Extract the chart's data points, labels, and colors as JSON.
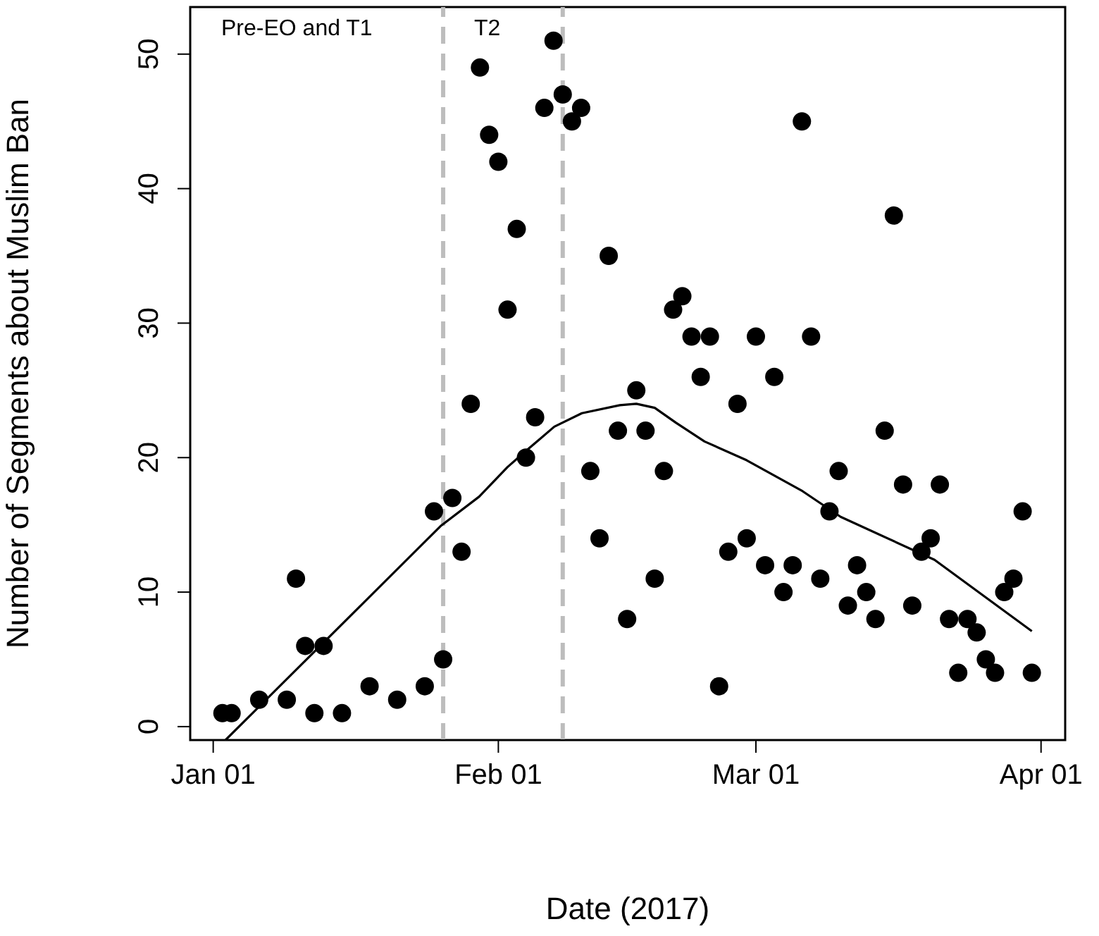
{
  "chart_data": {
    "type": "scatter",
    "xlabel": "Date (2017)",
    "ylabel": "Number of Segments about Muslim Ban",
    "xlim": [
      "2016-12-29T12:00",
      "2017-04-03T15:00"
    ],
    "xticks": [
      {
        "value": "2017-01-01",
        "label": "Jan 01"
      },
      {
        "value": "2017-02-01",
        "label": "Feb 01"
      },
      {
        "value": "2017-03-01",
        "label": "Mar 01"
      },
      {
        "value": "2017-04-01",
        "label": "Apr 01"
      }
    ],
    "ylim": [
      -1,
      53.5
    ],
    "yticks": [
      0,
      10,
      20,
      30,
      40,
      50
    ],
    "grid": false,
    "legend": false,
    "marker": "circle",
    "series": [
      {
        "color": "#000000",
        "x": [
          "2017-01-02",
          "2017-01-03",
          "2017-01-06",
          "2017-01-09",
          "2017-01-10",
          "2017-01-11",
          "2017-01-12",
          "2017-01-13",
          "2017-01-15",
          "2017-01-18",
          "2017-01-21",
          "2017-01-24",
          "2017-01-25",
          "2017-01-26",
          "2017-01-27",
          "2017-01-28",
          "2017-01-29",
          "2017-01-30",
          "2017-01-31",
          "2017-02-01",
          "2017-02-02",
          "2017-02-03",
          "2017-02-04",
          "2017-02-05",
          "2017-02-06",
          "2017-02-07",
          "2017-02-08",
          "2017-02-09",
          "2017-02-10",
          "2017-02-11",
          "2017-02-12",
          "2017-02-13",
          "2017-02-14",
          "2017-02-15",
          "2017-02-16",
          "2017-02-17",
          "2017-02-18",
          "2017-02-19",
          "2017-02-20",
          "2017-02-21",
          "2017-02-22",
          "2017-02-23",
          "2017-02-24",
          "2017-02-25",
          "2017-02-26",
          "2017-02-27",
          "2017-02-28",
          "2017-03-01",
          "2017-03-02",
          "2017-03-03",
          "2017-03-04",
          "2017-03-05",
          "2017-03-06",
          "2017-03-07",
          "2017-03-08",
          "2017-03-09",
          "2017-03-10",
          "2017-03-11",
          "2017-03-12",
          "2017-03-13",
          "2017-03-14",
          "2017-03-15",
          "2017-03-16",
          "2017-03-17",
          "2017-03-18",
          "2017-03-19",
          "2017-03-20",
          "2017-03-21",
          "2017-03-22",
          "2017-03-23",
          "2017-03-24",
          "2017-03-25",
          "2017-03-26",
          "2017-03-27",
          "2017-03-28",
          "2017-03-29",
          "2017-03-30",
          "2017-03-31"
        ],
        "values": [
          1,
          1,
          2,
          2,
          11,
          6,
          1,
          6,
          1,
          3,
          2,
          3,
          16,
          5,
          17,
          13,
          24,
          49,
          44,
          42,
          31,
          37,
          20,
          23,
          46,
          51,
          47,
          45,
          46,
          19,
          14,
          35,
          22,
          8,
          25,
          22,
          11,
          19,
          31,
          32,
          29,
          26,
          29,
          3,
          13,
          24,
          14,
          29,
          12,
          26,
          10,
          12,
          45,
          29,
          11,
          16,
          19,
          9,
          12,
          10,
          8,
          22,
          38,
          18,
          9,
          13,
          14,
          18,
          8,
          4,
          8,
          7,
          5,
          4,
          10,
          11,
          16,
          4
        ]
      },
      {
        "type": "line",
        "color": "#000000",
        "marker": "none",
        "line_style": "solid",
        "x": [
          "2017-01-02T08:00",
          "2017-01-25T17:00",
          "2017-01-29T22:00",
          "2017-02-02",
          "2017-02-04",
          "2017-02-07T02:00",
          "2017-02-10T02:00",
          "2017-02-14T05:00",
          "2017-02-16",
          "2017-02-18",
          "2017-02-20T07:00",
          "2017-02-23T10:00",
          "2017-02-28",
          "2017-03-06T02:00",
          "2017-03-10T05:00",
          "2017-03-20T10:00",
          "2017-03-31"
        ],
        "values": [
          -1,
          14.9,
          17.1,
          19.3,
          20.5,
          22.3,
          23.3,
          23.9,
          24,
          23.7,
          22.6,
          21.2,
          19.8,
          17.5,
          15.6,
          12.4,
          7.1
        ]
      }
    ],
    "ref_lines": [
      {
        "axis": "x",
        "value": "2017-01-26",
        "label": null,
        "color": "#bdbdbd",
        "line_style": "dashed"
      },
      {
        "axis": "x",
        "value": "2017-02-08",
        "label": null,
        "color": "#bdbdbd",
        "line_style": "dashed"
      }
    ],
    "annotations": [
      "Pre-EO and T1",
      "T2"
    ]
  }
}
